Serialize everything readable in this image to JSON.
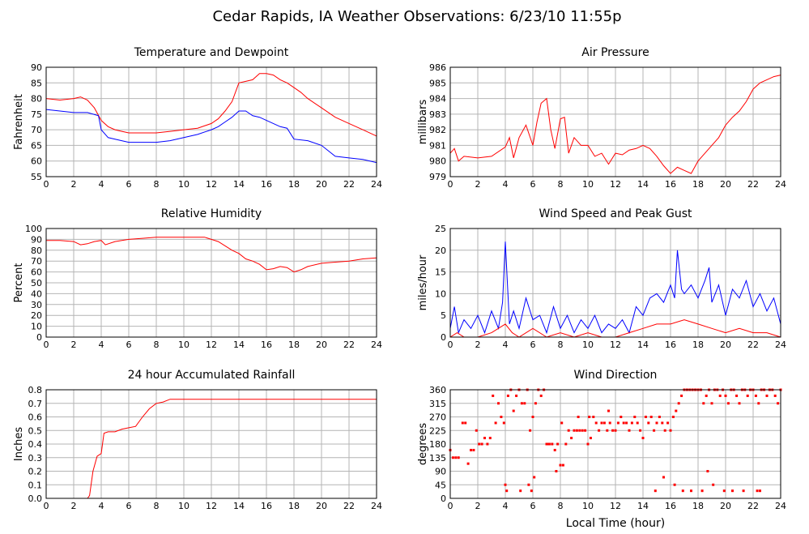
{
  "page_title": "Cedar Rapids, IA Weather Observations: 6/23/10 11:55p",
  "shared_xlabel": "Local Time (hour)",
  "colors": {
    "red": "#ff0000",
    "blue": "#0000ff",
    "grid": "#b4b4b4",
    "frame": "#000000"
  },
  "chart_data": [
    {
      "id": "temp",
      "type": "line",
      "title": "Temperature and Dewpoint",
      "xlabel": "",
      "ylabel": "Fahrenheit",
      "xlim": [
        0,
        24
      ],
      "ylim": [
        55,
        90
      ],
      "xticks": [
        0,
        2,
        4,
        6,
        8,
        10,
        12,
        14,
        16,
        18,
        20,
        22,
        24
      ],
      "yticks": [
        55,
        60,
        65,
        70,
        75,
        80,
        85,
        90
      ],
      "grid": true,
      "series": [
        {
          "color": "#ff0000",
          "x": [
            0,
            1,
            2,
            2.5,
            3,
            3.5,
            4,
            4.5,
            5,
            5.5,
            6,
            7,
            8,
            9,
            10,
            11,
            12,
            12.5,
            13,
            13.5,
            14,
            14.5,
            15,
            15.5,
            16,
            16.5,
            17,
            17.5,
            18,
            18.5,
            19,
            20,
            21,
            22,
            23,
            24
          ],
          "values": [
            80,
            79.5,
            80,
            80.5,
            79.5,
            77,
            73,
            71,
            70,
            69.5,
            69,
            69,
            69,
            69.5,
            70,
            70.5,
            72,
            73.5,
            76,
            79,
            85,
            85.5,
            86,
            88,
            88,
            87.5,
            86,
            85,
            83.5,
            82,
            80,
            77,
            74,
            72,
            70,
            68
          ]
        },
        {
          "color": "#0000ff",
          "x": [
            0,
            1,
            2,
            3,
            3.8,
            4,
            4.5,
            5,
            6,
            7,
            8,
            9,
            10,
            11,
            12,
            12.5,
            13,
            13.5,
            14,
            14.5,
            15,
            15.5,
            16,
            16.5,
            17,
            17.5,
            18,
            19,
            20,
            21,
            22,
            23,
            24
          ],
          "values": [
            76.5,
            76,
            75.5,
            75.5,
            74.5,
            70,
            67.5,
            67,
            66,
            66,
            66,
            66.5,
            67.5,
            68.5,
            70,
            71,
            72.5,
            74,
            76,
            76,
            74.5,
            74,
            73,
            72,
            71,
            70.5,
            67,
            66.5,
            65,
            61.5,
            61,
            60.5,
            59.5
          ]
        }
      ]
    },
    {
      "id": "pressure",
      "type": "line",
      "title": "Air Pressure",
      "xlabel": "",
      "ylabel": "millibars",
      "xlim": [
        0,
        24
      ],
      "ylim": [
        979,
        986
      ],
      "xticks": [
        0,
        2,
        4,
        6,
        8,
        10,
        12,
        14,
        16,
        18,
        20,
        22,
        24
      ],
      "yticks": [
        979,
        980,
        981,
        982,
        983,
        984,
        985,
        986
      ],
      "grid": true,
      "series": [
        {
          "color": "#ff0000",
          "x": [
            0,
            0.3,
            0.6,
            1,
            2,
            3,
            4,
            4.3,
            4.6,
            5,
            5.5,
            6,
            6.3,
            6.6,
            7,
            7.3,
            7.6,
            8,
            8.3,
            8.6,
            9,
            9.5,
            10,
            10.5,
            11,
            11.5,
            12,
            12.5,
            13,
            13.5,
            14,
            14.5,
            15,
            15.5,
            16,
            16.5,
            17,
            17.5,
            18,
            18.5,
            19,
            19.5,
            20,
            20.5,
            21,
            21.5,
            22,
            22.5,
            23,
            23.5,
            24
          ],
          "values": [
            980.5,
            980.8,
            980,
            980.3,
            980.2,
            980.3,
            980.9,
            981.5,
            980.2,
            981.5,
            982.3,
            981,
            982.5,
            983.7,
            984,
            982,
            980.8,
            982.7,
            982.8,
            980.5,
            981.5,
            981,
            981,
            980.3,
            980.5,
            979.8,
            980.5,
            980.4,
            980.7,
            980.8,
            981,
            980.8,
            980.3,
            979.7,
            979.2,
            979.6,
            979.4,
            979.2,
            980,
            980.5,
            981,
            981.5,
            982.3,
            982.8,
            983.2,
            983.8,
            984.6,
            985,
            985.2,
            985.4,
            985.5
          ]
        }
      ]
    },
    {
      "id": "rh",
      "type": "line",
      "title": "Relative Humidity",
      "xlabel": "",
      "ylabel": "Percent",
      "xlim": [
        0,
        24
      ],
      "ylim": [
        0,
        100
      ],
      "xticks": [
        0,
        2,
        4,
        6,
        8,
        10,
        12,
        14,
        16,
        18,
        20,
        22,
        24
      ],
      "yticks": [
        0,
        10,
        20,
        30,
        40,
        50,
        60,
        70,
        80,
        90,
        100
      ],
      "grid": true,
      "series": [
        {
          "color": "#ff0000",
          "x": [
            0,
            1,
            2,
            2.5,
            3,
            3.5,
            4,
            4.3,
            5,
            6,
            7,
            8,
            9,
            10,
            11,
            11.5,
            12,
            12.5,
            13,
            13.5,
            14,
            14.5,
            15,
            15.5,
            16,
            16.5,
            17,
            17.5,
            18,
            18.5,
            19,
            20,
            21,
            22,
            23,
            24
          ],
          "values": [
            89,
            89,
            88,
            85,
            86,
            88,
            89,
            85,
            88,
            90,
            91,
            92,
            92,
            92,
            92,
            92,
            90,
            88,
            84,
            80,
            77,
            72,
            70,
            67,
            62,
            63,
            65,
            64,
            60,
            62,
            65,
            68,
            69,
            70,
            72,
            73
          ]
        }
      ]
    },
    {
      "id": "wind",
      "type": "line",
      "title": "Wind Speed and Peak Gust",
      "xlabel": "",
      "ylabel": "miles/hour",
      "xlim": [
        0,
        24
      ],
      "ylim": [
        0,
        25
      ],
      "xticks": [
        0,
        2,
        4,
        6,
        8,
        10,
        12,
        14,
        16,
        18,
        20,
        22,
        24
      ],
      "yticks": [
        0,
        5,
        10,
        15,
        20,
        25
      ],
      "grid": true,
      "series": [
        {
          "color": "#0000ff",
          "x": [
            0,
            0.3,
            0.6,
            1,
            1.5,
            2,
            2.5,
            3,
            3.5,
            3.8,
            4,
            4.3,
            4.6,
            5,
            5.5,
            6,
            6.5,
            7,
            7.5,
            8,
            8.5,
            9,
            9.5,
            10,
            10.5,
            11,
            11.5,
            12,
            12.5,
            13,
            13.5,
            14,
            14.5,
            15,
            15.5,
            16,
            16.3,
            16.5,
            16.8,
            17,
            17.5,
            18,
            18.5,
            18.8,
            19,
            19.5,
            20,
            20.5,
            21,
            21.5,
            22,
            22.5,
            23,
            23.5,
            24
          ],
          "values": [
            2,
            7,
            1,
            4,
            2,
            5,
            1,
            6,
            2,
            8,
            22,
            3,
            6,
            2,
            9,
            4,
            5,
            1,
            7,
            2,
            5,
            1,
            4,
            2,
            5,
            1,
            3,
            2,
            4,
            1,
            7,
            5,
            9,
            10,
            8,
            12,
            9,
            20,
            11,
            10,
            12,
            9,
            13,
            16,
            8,
            12,
            5,
            11,
            9,
            13,
            7,
            10,
            6,
            9,
            3
          ]
        },
        {
          "color": "#ff0000",
          "x": [
            0,
            0.5,
            1,
            2,
            3,
            4,
            4.5,
            5,
            6,
            7,
            8,
            9,
            10,
            11,
            12,
            13,
            14,
            15,
            16,
            17,
            18,
            19,
            20,
            21,
            22,
            23,
            24
          ],
          "values": [
            0,
            1,
            0,
            0,
            1,
            3,
            1,
            0,
            2,
            0,
            1,
            0,
            1,
            0,
            0,
            1,
            2,
            3,
            3,
            4,
            3,
            2,
            1,
            2,
            1,
            1,
            0
          ]
        }
      ]
    },
    {
      "id": "rain",
      "type": "line",
      "title": "24 hour Accumulated Rainfall",
      "xlabel": "",
      "ylabel": "Inches",
      "xlim": [
        0,
        24
      ],
      "ylim": [
        0,
        0.8
      ],
      "xticks": [
        0,
        2,
        4,
        6,
        8,
        10,
        12,
        14,
        16,
        18,
        20,
        22,
        24
      ],
      "yticks": [
        "0.0",
        "0.1",
        "0.2",
        "0.3",
        "0.4",
        "0.5",
        "0.6",
        "0.7",
        "0.8"
      ],
      "grid": true,
      "series": [
        {
          "color": "#ff0000",
          "x": [
            0,
            1,
            2,
            3,
            3.15,
            3.4,
            3.7,
            4,
            4.2,
            4.5,
            5,
            5.5,
            6,
            6.5,
            7,
            7.5,
            8,
            8.5,
            9,
            10,
            12,
            14,
            16,
            18,
            20,
            22,
            24
          ],
          "values": [
            0,
            0,
            0,
            0,
            0.02,
            0.2,
            0.31,
            0.33,
            0.48,
            0.49,
            0.49,
            0.51,
            0.52,
            0.53,
            0.6,
            0.66,
            0.7,
            0.71,
            0.73,
            0.73,
            0.73,
            0.73,
            0.73,
            0.73,
            0.73,
            0.73,
            0.73
          ]
        }
      ]
    },
    {
      "id": "wdir",
      "type": "scatter",
      "title": "Wind Direction",
      "xlabel": "Local Time (hour)",
      "ylabel": "degrees",
      "xlim": [
        0,
        24
      ],
      "ylim": [
        0,
        360
      ],
      "xticks": [
        0,
        2,
        4,
        6,
        8,
        10,
        12,
        14,
        16,
        18,
        20,
        22,
        24
      ],
      "yticks": [
        0,
        45,
        90,
        135,
        180,
        225,
        270,
        315,
        360
      ],
      "grid": true,
      "series": [
        {
          "color": "#ff0000",
          "x": [
            0,
            0.2,
            0.4,
            0.6,
            0.9,
            1.1,
            1.3,
            1.5,
            1.7,
            1.9,
            2.1,
            2.3,
            2.5,
            2.7,
            2.9,
            3.1,
            3.3,
            3.5,
            3.7,
            3.9,
            4.0,
            4.2,
            4.4,
            4.6,
            4.8,
            5.0,
            5.2,
            5.4,
            5.6,
            5.8,
            6.0,
            6.2,
            6.4,
            6.6,
            6.8,
            7.0,
            7.2,
            7.4,
            7.6,
            7.8,
            8.0,
            8.2,
            8.4,
            8.6,
            8.8,
            9.0,
            9.2,
            9.4,
            9.6,
            9.8,
            10.0,
            10.2,
            10.4,
            10.6,
            10.8,
            11.0,
            11.2,
            11.4,
            11.6,
            11.8,
            12.0,
            12.2,
            12.4,
            12.6,
            12.8,
            13.0,
            13.2,
            13.4,
            13.6,
            13.8,
            14.0,
            14.2,
            14.4,
            14.6,
            14.8,
            15.0,
            15.2,
            15.4,
            15.6,
            15.8,
            16.0,
            16.2,
            16.4,
            16.6,
            16.8,
            17.0,
            17.2,
            17.4,
            17.6,
            17.8,
            18.0,
            18.2,
            18.4,
            18.6,
            18.8,
            19.0,
            19.2,
            19.4,
            19.6,
            19.8,
            20.0,
            20.2,
            20.4,
            20.6,
            20.8,
            21.0,
            21.2,
            21.4,
            21.6,
            21.8,
            22.0,
            22.2,
            22.4,
            22.6,
            22.8,
            23.0,
            23.2,
            23.4,
            23.6,
            23.8,
            24.0,
            4.1,
            5.1,
            5.7,
            5.9,
            6.1,
            7.1,
            7.7,
            8.1,
            9.3,
            10.1,
            11.5,
            14.9,
            15.5,
            16.3,
            16.9,
            17.5,
            18.3,
            18.7,
            19.1,
            19.9,
            20.5,
            21.3,
            22.3,
            22.5
          ],
          "values": [
            160,
            135,
            135,
            135,
            250,
            250,
            115,
            160,
            160,
            225,
            180,
            180,
            200,
            180,
            200,
            340,
            250,
            315,
            270,
            250,
            45,
            340,
            360,
            290,
            340,
            360,
            315,
            315,
            360,
            225,
            270,
            315,
            360,
            340,
            360,
            180,
            180,
            180,
            160,
            180,
            110,
            110,
            180,
            225,
            200,
            225,
            225,
            225,
            225,
            225,
            180,
            200,
            270,
            250,
            225,
            250,
            250,
            225,
            250,
            225,
            225,
            250,
            270,
            250,
            250,
            225,
            250,
            270,
            250,
            225,
            200,
            270,
            250,
            270,
            225,
            250,
            270,
            250,
            225,
            250,
            225,
            270,
            290,
            315,
            340,
            360,
            360,
            360,
            360,
            360,
            360,
            360,
            315,
            340,
            360,
            315,
            360,
            360,
            340,
            360,
            340,
            315,
            360,
            360,
            340,
            315,
            360,
            360,
            340,
            360,
            360,
            340,
            315,
            360,
            360,
            340,
            360,
            360,
            340,
            315,
            360,
            25,
            25,
            45,
            25,
            70,
            180,
            90,
            250,
            270,
            270,
            290,
            25,
            70,
            45,
            25,
            25,
            25,
            90,
            45,
            25,
            25,
            25,
            25,
            25
          ]
        }
      ]
    }
  ]
}
